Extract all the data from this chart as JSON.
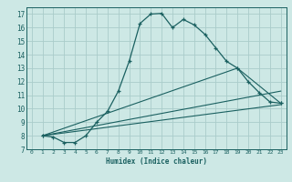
{
  "xlabel": "Humidex (Indice chaleur)",
  "background_color": "#cde8e5",
  "grid_color": "#aaccca",
  "line_color": "#1a6060",
  "xlim": [
    -0.5,
    23.5
  ],
  "ylim": [
    7,
    17.5
  ],
  "yticks": [
    7,
    8,
    9,
    10,
    11,
    12,
    13,
    14,
    15,
    16,
    17
  ],
  "xticks": [
    0,
    1,
    2,
    3,
    4,
    5,
    6,
    7,
    8,
    9,
    10,
    11,
    12,
    13,
    14,
    15,
    16,
    17,
    18,
    19,
    20,
    21,
    22,
    23
  ],
  "series0_x": [
    1,
    2,
    3,
    4,
    5,
    6,
    7,
    8,
    9,
    10,
    11,
    12,
    13,
    14,
    15,
    16,
    17,
    18,
    19,
    20,
    21,
    22,
    23
  ],
  "series0_y": [
    8.0,
    7.9,
    7.5,
    7.5,
    8.0,
    9.0,
    9.8,
    11.3,
    13.5,
    16.3,
    17.0,
    17.05,
    16.0,
    16.6,
    16.2,
    15.5,
    14.5,
    13.5,
    13.0,
    12.0,
    11.2,
    10.5,
    10.4
  ],
  "series1_x": [
    1,
    23
  ],
  "series1_y": [
    8.0,
    10.3
  ],
  "series2_x": [
    1,
    23
  ],
  "series2_y": [
    8.0,
    11.3
  ],
  "series3_x": [
    1,
    19,
    23
  ],
  "series3_y": [
    8.0,
    13.0,
    10.4
  ]
}
